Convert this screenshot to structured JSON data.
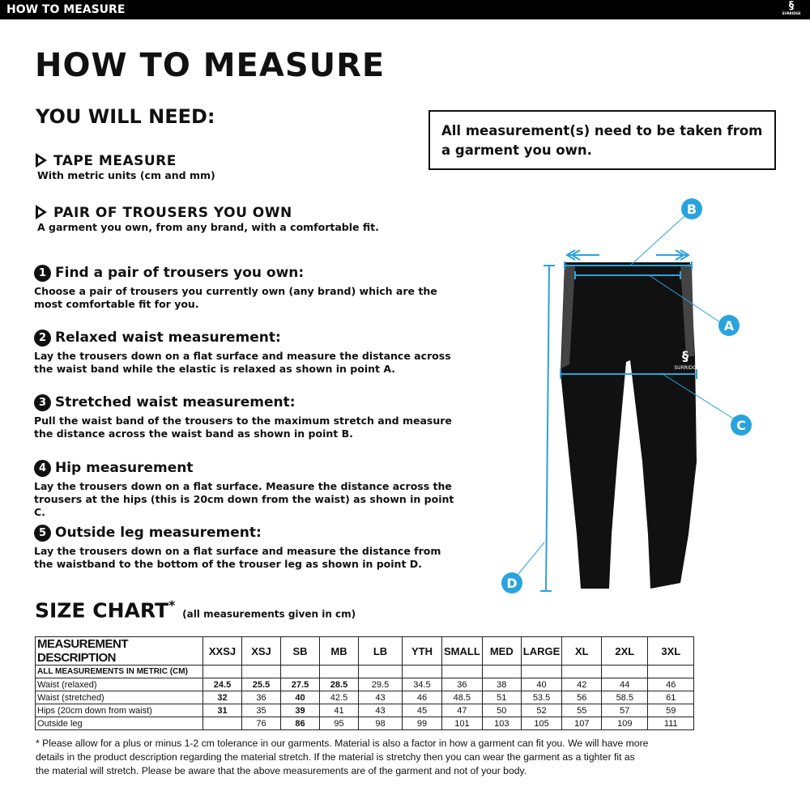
{
  "header": {
    "bar_title": "HOW TO MEASURE",
    "logo_text": "SURRIDGE"
  },
  "title": "HOW TO MEASURE",
  "you_will_need": {
    "heading": "YOU WILL NEED:",
    "items": [
      {
        "label": "TAPE MEASURE",
        "desc": "With metric units (cm and mm)"
      },
      {
        "label": "PAIR OF TROUSERS YOU OWN",
        "desc": "A garment you own, from any brand, with a comfortable fit."
      }
    ]
  },
  "note": "All measurement(s) need to be taken from a garment you own.",
  "steps": [
    {
      "num": "1",
      "title": "Find a pair of trousers you own:",
      "text": "Choose a pair of trousers you currently own (any brand) which are the most comfortable fit for you."
    },
    {
      "num": "2",
      "title": "Relaxed waist measurement:",
      "text": "Lay the trousers down on a flat surface and measure the distance across the waist band while the elastic is relaxed as shown in point A."
    },
    {
      "num": "3",
      "title": "Stretched waist measurement:",
      "text": "Pull the waist band of the trousers to the maximum stretch and measure the distance across the waist band as shown in point B."
    },
    {
      "num": "4",
      "title": "Hip measurement",
      "text": "Lay the trousers down on a flat surface. Measure the distance across the trousers at the hips (this is 20cm down from the waist)  as shown in point C."
    },
    {
      "num": "5",
      "title": "Outside leg measurement:",
      "text": "Lay the trousers down on a flat surface and measure the distance from the waistband to the bottom of the trouser  leg as shown in point D."
    }
  ],
  "diagram": {
    "labels": [
      "A",
      "B",
      "C",
      "D"
    ],
    "accent": "#29a3dd",
    "garment_logo": "SURRIDGE"
  },
  "size_chart": {
    "heading": "SIZE CHART",
    "asterisk": "*",
    "subheading": "(all measurements given in cm)",
    "columns": [
      "MEASUREMENT DESCRIPTION",
      "XXSJ",
      "XSJ",
      "SB",
      "MB",
      "LB",
      "YTH",
      "SMALL",
      "MED",
      "LARGE",
      "XL",
      "2XL",
      "3XL"
    ],
    "subheader": "ALL MEASUREMENTS IN METRIC (CM)",
    "rows": [
      {
        "label": "Waist (relaxed)",
        "values": [
          "24.5",
          "25.5",
          "27.5",
          "28.5",
          "29.5",
          "34.5",
          "36",
          "38",
          "40",
          "42",
          "44",
          "46"
        ]
      },
      {
        "label": "Waist (stretched)",
        "values": [
          "32",
          "36",
          "40",
          "42.5",
          "43",
          "46",
          "48.5",
          "51",
          "53.5",
          "56",
          "58.5",
          "61"
        ]
      },
      {
        "label": "Hips (20cm down from waist)",
        "values": [
          "31",
          "35",
          "39",
          "41",
          "43",
          "45",
          "47",
          "50",
          "52",
          "55",
          "57",
          "59"
        ]
      },
      {
        "label": "Outside leg",
        "values": [
          "",
          "76",
          "86",
          "95",
          "98",
          "99",
          "101",
          "103",
          "105",
          "107",
          "109",
          "111"
        ]
      }
    ]
  },
  "footnote": "* Please allow for a plus or minus 1-2 cm tolerance in our garments. Material is also a factor in how a garment can fit you. We will have more details in the product description regarding the material stretch.  If the material is stretchy then you can wear the garment as a tighter fit as the material will stretch.  Please be aware that the above measurements are of the garment and not of your body."
}
